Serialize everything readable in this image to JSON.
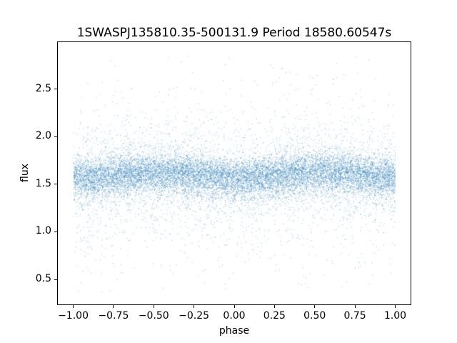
{
  "figure": {
    "background_color": "#ffffff",
    "frame_color": "#000000",
    "text_color": "#000000"
  },
  "chart_data": {
    "type": "scatter",
    "title": "1SWASPJ135810.35-500131.9 Period 18580.60547s",
    "xlabel": "phase",
    "ylabel": "flux",
    "xlim": [
      -1.1,
      1.1
    ],
    "ylim": [
      0.23,
      3.0
    ],
    "x_ticks": {
      "values": [
        -1.0,
        -0.75,
        -0.5,
        -0.25,
        0.0,
        0.25,
        0.5,
        0.75,
        1.0
      ],
      "labels": [
        "−1.00",
        "−0.75",
        "−0.50",
        "−0.25",
        "0.00",
        "0.25",
        "0.50",
        "0.75",
        "1.00"
      ]
    },
    "y_ticks": {
      "values": [
        0.5,
        1.0,
        1.5,
        2.0,
        2.5
      ],
      "labels": [
        "0.5",
        "1.0",
        "1.5",
        "2.0",
        "2.5"
      ]
    },
    "grid": false,
    "legend": null,
    "marker_color": "#1f77b4",
    "marker_alpha": 0.5,
    "marker_size_px": 1,
    "scatter_model": {
      "n_points": 16000,
      "x_range": [
        -1.0,
        1.0
      ],
      "flux_mean": 1.6,
      "flux_modulation_amplitude": 0.03,
      "flux_modulation_period": 1.0,
      "flux_modulation_phase_offset": 0.3,
      "noise_components": [
        {
          "fraction": 0.75,
          "std": 0.1
        },
        {
          "fraction": 0.17,
          "std": 0.25
        },
        {
          "fraction": 0.08,
          "std": 0.55
        }
      ],
      "skew_down": 1.15,
      "flux_min": 0.37,
      "flux_max": 2.86,
      "seed": 42
    }
  }
}
